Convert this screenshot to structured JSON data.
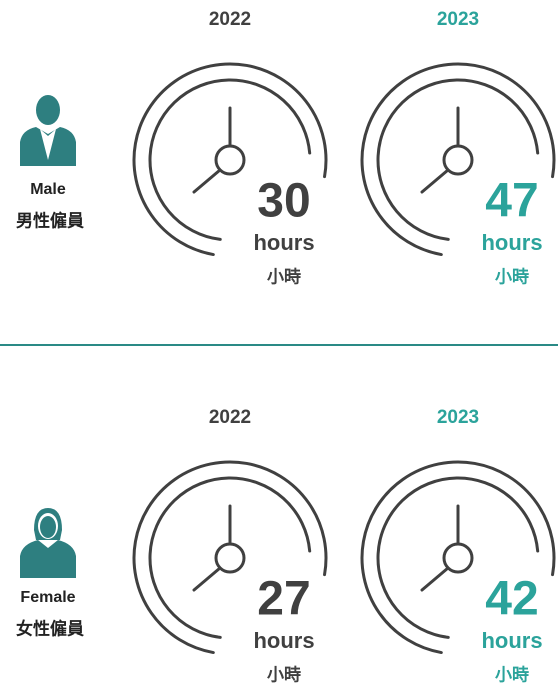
{
  "sections": [
    {
      "label_en": "Male",
      "label_zh": "男性僱員",
      "icon": "male",
      "years": [
        {
          "year": "2022",
          "value": 30,
          "unit_en": "hours",
          "unit_zh": "小時",
          "color": "#404040"
        },
        {
          "year": "2023",
          "value": 47,
          "unit_en": "hours",
          "unit_zh": "小時",
          "color": "#2ba39b"
        }
      ]
    },
    {
      "label_en": "Female",
      "label_zh": "女性僱員",
      "icon": "female",
      "years": [
        {
          "year": "2022",
          "value": 27,
          "unit_en": "hours",
          "unit_zh": "小時",
          "color": "#404040"
        },
        {
          "year": "2023",
          "value": 42,
          "unit_en": "hours",
          "unit_zh": "小時",
          "color": "#2ba39b"
        }
      ]
    }
  ]
}
